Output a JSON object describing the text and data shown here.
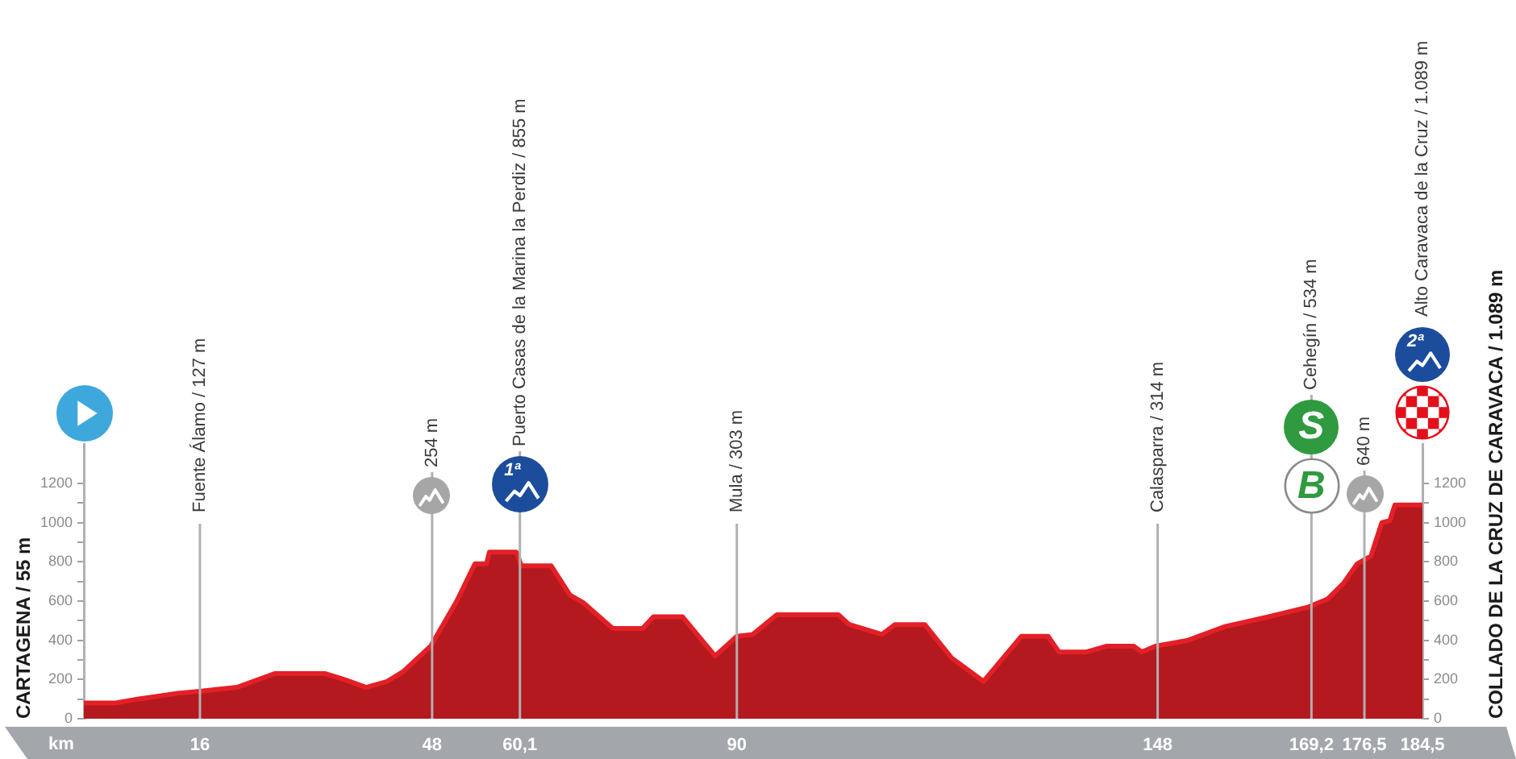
{
  "chart_data": {
    "type": "area",
    "x": [
      0,
      4.4,
      7.4,
      13,
      16,
      21.1,
      26.3,
      33.3,
      35.9,
      38.9,
      41.8,
      44,
      47.8,
      51.4,
      53.9,
      55.5,
      55.9,
      59.6,
      60.3,
      64.4,
      67,
      68.9,
      72.9,
      77,
      78.5,
      82.5,
      87,
      90,
      92.2,
      95.5,
      104,
      105.5,
      110,
      111.8,
      115.9,
      119.6,
      124,
      129.2,
      132.9,
      134.4,
      138.1,
      141,
      144.7,
      145.8,
      147.7,
      152.2,
      157.3,
      163.3,
      168.8,
      171.4,
      173.6,
      175.5,
      177.4,
      178.9,
      180,
      180.7,
      184.5
    ],
    "values": [
      80,
      80,
      100,
      130,
      140,
      160,
      230,
      230,
      200,
      160,
      190,
      240,
      370,
      600,
      790,
      790,
      850,
      850,
      780,
      780,
      630,
      590,
      460,
      460,
      520,
      520,
      320,
      420,
      430,
      530,
      530,
      480,
      430,
      480,
      480,
      310,
      190,
      420,
      420,
      340,
      340,
      370,
      370,
      340,
      370,
      400,
      470,
      520,
      570,
      610,
      690,
      790,
      830,
      1000,
      1010,
      1090,
      1090
    ],
    "color": "#b3191f",
    "xlabel": "km",
    "xlim": [
      0,
      184.5
    ],
    "xticks": [
      16,
      48,
      {
        "value": 60.1,
        "label": "60,1"
      },
      90,
      148,
      {
        "value": 169.2,
        "label": "169,2"
      },
      {
        "value": 176.5,
        "label": "176,5"
      },
      {
        "value": 184.5,
        "label": "184,5"
      }
    ],
    "ylim": [
      0,
      1400
    ],
    "yticks": [
      0,
      {
        "value": 100,
        "label": null
      },
      200,
      {
        "value": 300,
        "label": null
      },
      400,
      {
        "value": 500,
        "label": null
      },
      600,
      {
        "value": 700,
        "label": null
      },
      800,
      {
        "value": 900,
        "label": null
      },
      1000,
      {
        "value": 1100,
        "label": null
      },
      1200
    ],
    "y2lim": [
      0,
      1400
    ],
    "y2ticks": [
      0,
      {
        "value": 100,
        "label": null
      },
      200,
      {
        "value": 300,
        "label": null
      },
      400,
      {
        "value": 500,
        "label": null
      },
      600,
      {
        "value": 700,
        "label": null
      },
      800,
      {
        "value": 900,
        "label": null
      },
      1000,
      {
        "value": 1100,
        "label": null
      },
      1200
    ],
    "ref_lines": [
      {
        "axis": "x",
        "value": 16,
        "label": "Fuente Álamo / 127 m"
      },
      {
        "axis": "x",
        "value": 48,
        "label": "254 m"
      },
      {
        "axis": "x",
        "value": 60.1,
        "label": "Puerto Casas de la Marina la Perdiz / 855 m"
      },
      {
        "axis": "x",
        "value": 90,
        "label": "Mula / 303 m"
      },
      {
        "axis": "x",
        "value": 148,
        "label": "Calasparra / 314 m"
      },
      {
        "axis": "x",
        "value": 169.2,
        "label": "Cehegín / 534 m"
      },
      {
        "axis": "x",
        "value": 176.5,
        "label": "640 m"
      }
    ],
    "annotations": [
      "CARTAGENA / 55 m",
      "1ª",
      "S",
      "B",
      "Alto Caravaca de la Cruz / 1.089 m",
      "2ª",
      "COLLADO DE LA CRUZ DE CARAVACA / 1.089 m"
    ]
  }
}
